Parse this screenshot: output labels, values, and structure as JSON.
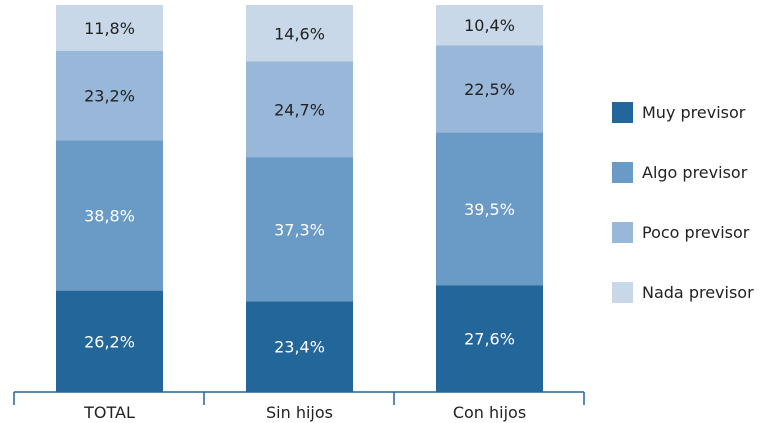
{
  "chart_data": {
    "type": "bar",
    "stacked": true,
    "categories": [
      "TOTAL",
      "Sin hijos",
      "Con hijos"
    ],
    "series": [
      {
        "name": "Muy previsor",
        "values": [
          26.2,
          23.4,
          27.6
        ],
        "labels": [
          "26,2%",
          "23,4%",
          "27,6%"
        ],
        "color": "#236699",
        "label_color": "#ffffff"
      },
      {
        "name": "Algo previsor",
        "values": [
          38.8,
          37.3,
          39.5
        ],
        "labels": [
          "38,8%",
          "37,3%",
          "39,5%"
        ],
        "color": "#6a9bc6",
        "label_color": "#ffffff"
      },
      {
        "name": "Poco previsor",
        "values": [
          23.2,
          24.7,
          22.5
        ],
        "labels": [
          "23,2%",
          "24,7%",
          "22,5%"
        ],
        "color": "#99b7d8",
        "label_color": "#222222"
      },
      {
        "name": "Nada previsor",
        "values": [
          11.8,
          14.6,
          10.4
        ],
        "labels": [
          "11,8%",
          "14,6%",
          "10,4%"
        ],
        "color": "#c8d8e8",
        "label_color": "#222222"
      }
    ],
    "ylim": [
      0,
      100
    ],
    "grid": false,
    "legend_position": "right",
    "axis_color": "#236699"
  }
}
